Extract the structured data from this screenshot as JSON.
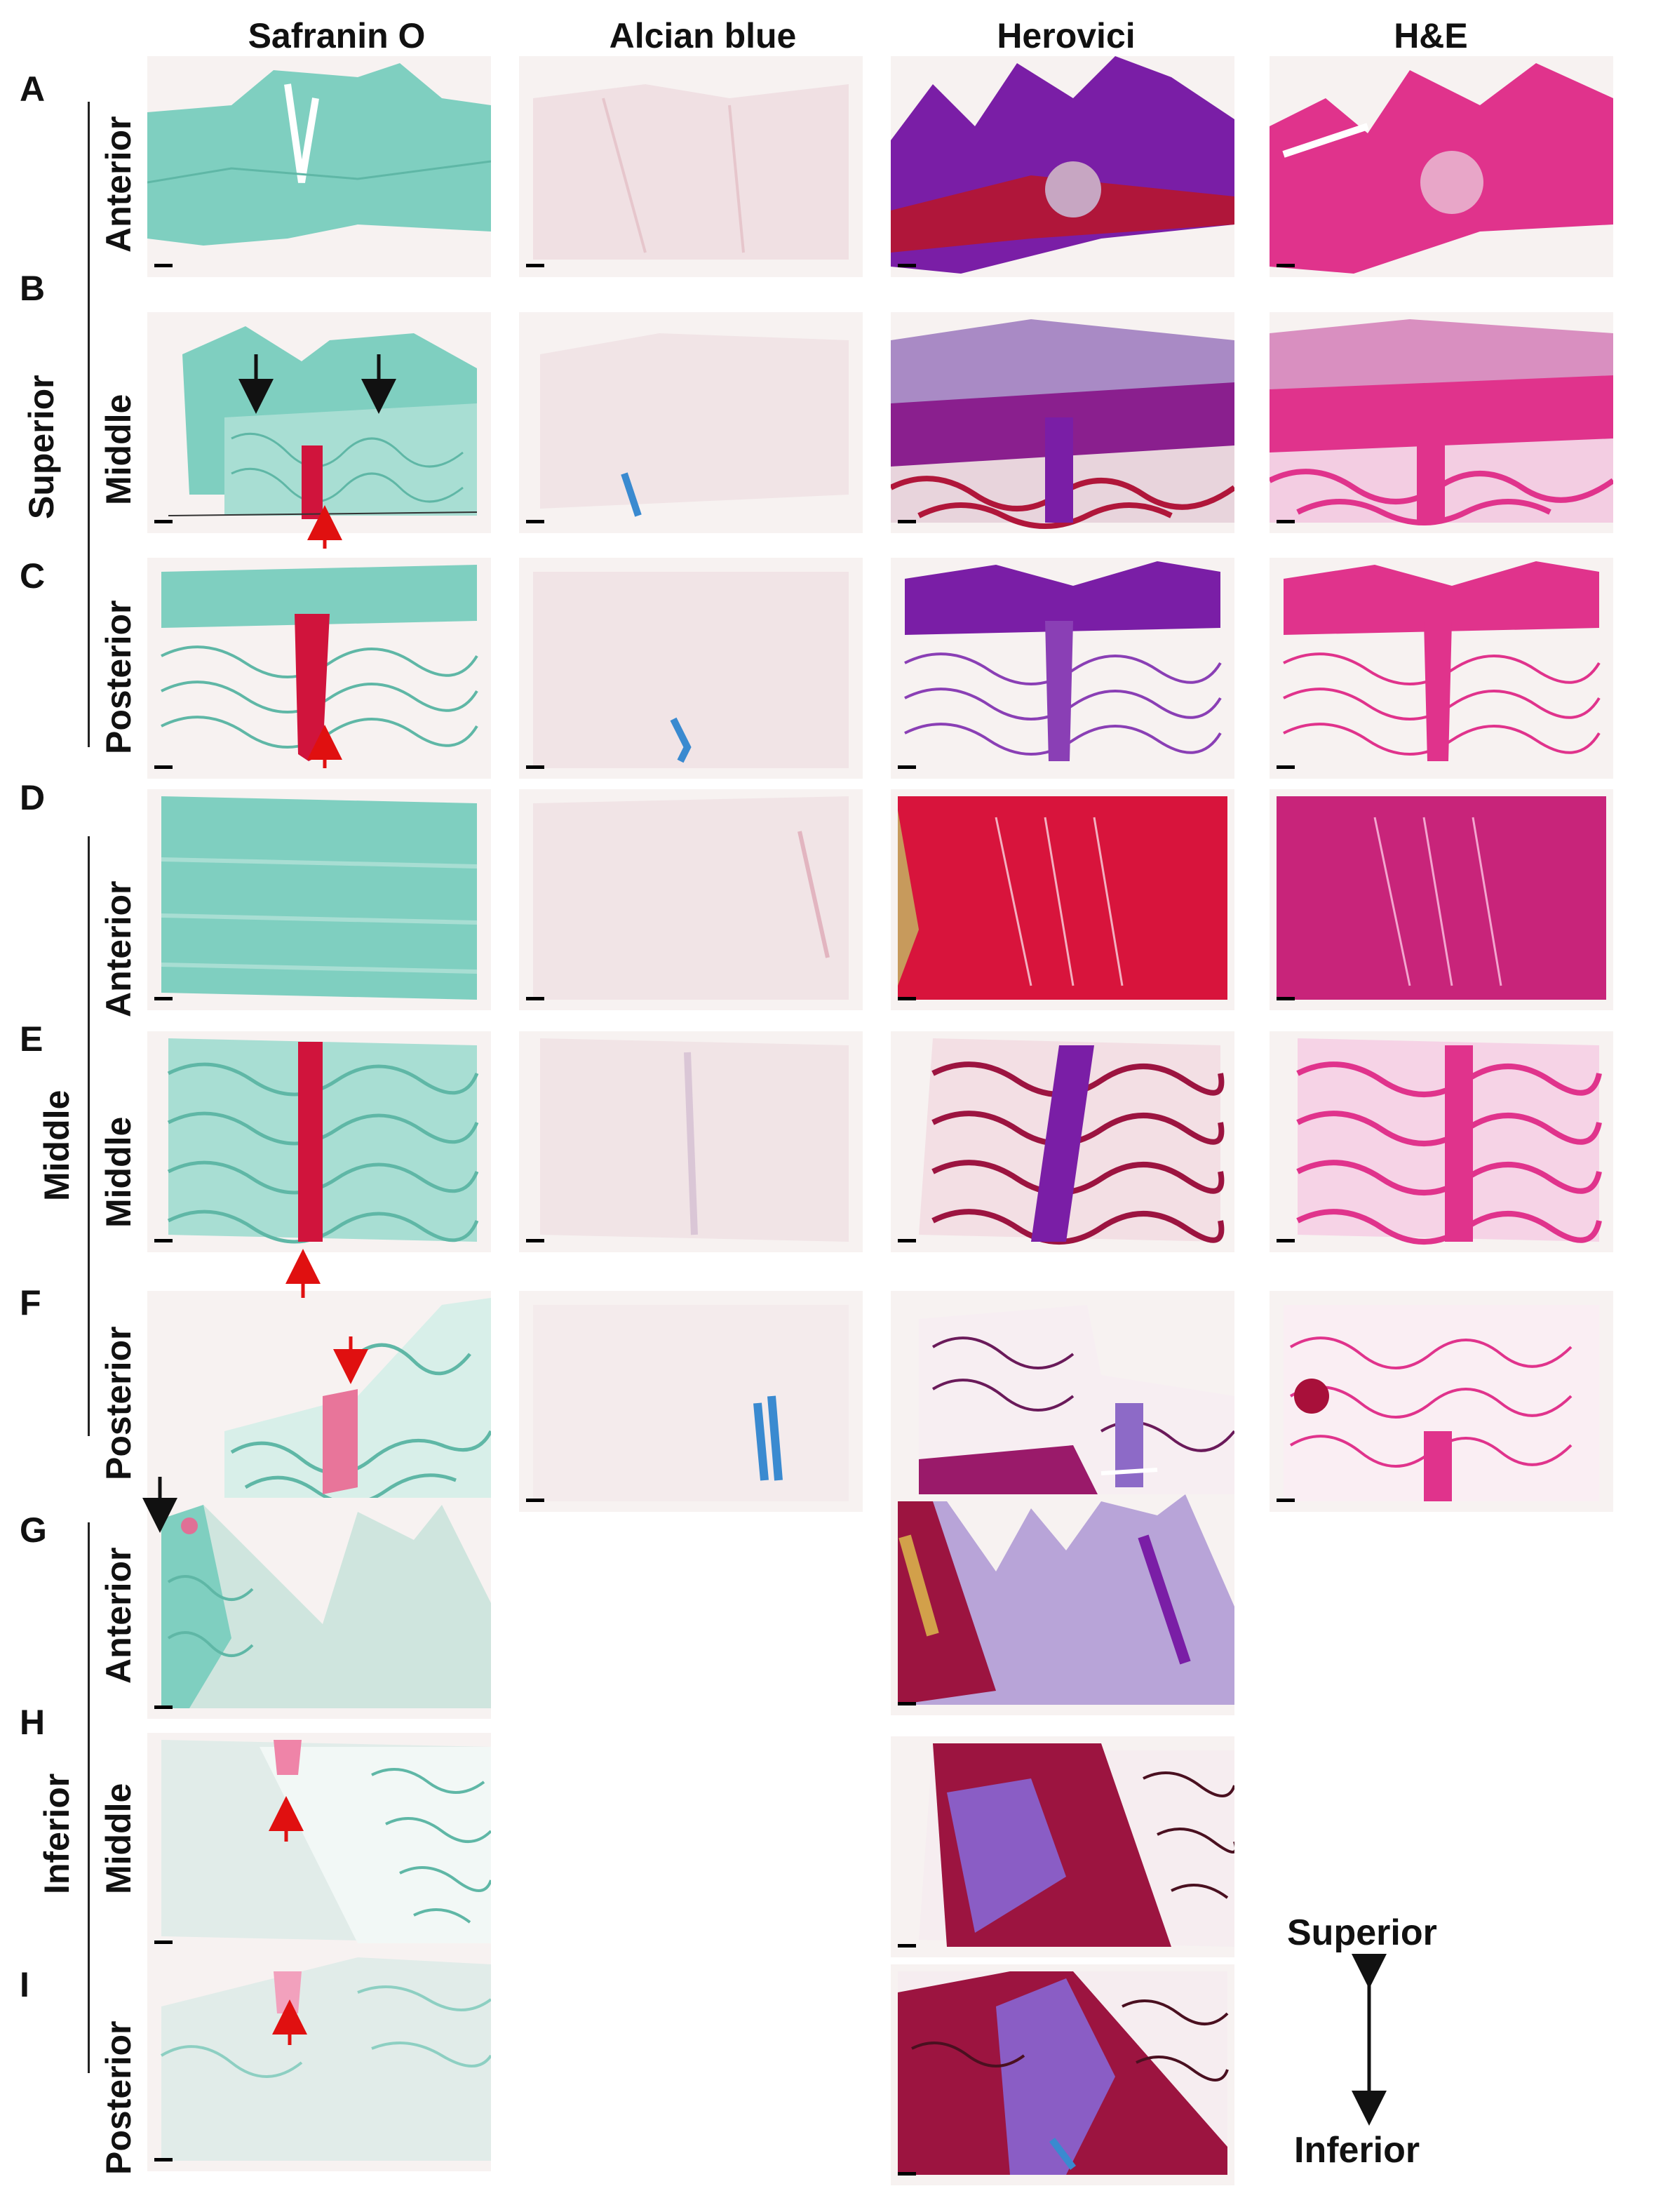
{
  "columns": [
    "Safranin O",
    "Alcian blue",
    "Herovici",
    "H&E"
  ],
  "row_letters": [
    "A",
    "B",
    "C",
    "D",
    "E",
    "F",
    "G",
    "H",
    "I"
  ],
  "row_labels": [
    "Anterior",
    "Middle",
    "Posterior",
    "Anterior",
    "Middle",
    "Posterior",
    "Anterior",
    "Middle",
    "Posterior"
  ],
  "groups": [
    "Superior",
    "Middle",
    "Inferior"
  ],
  "orientation": {
    "top": "Superior",
    "bottom": "Inferior"
  },
  "colors": {
    "safranin_bg": "#7fcfc0",
    "safranin_red": "#d0143c",
    "alcian_bg": "#f1e4e6",
    "alcian_blue": "#3a8ad0",
    "herovici_purple": "#7a1ea6",
    "herovici_red": "#b0163a",
    "he_pink": "#e0338c",
    "arrow_red": "#e01010",
    "arrow_black": "#111111"
  }
}
